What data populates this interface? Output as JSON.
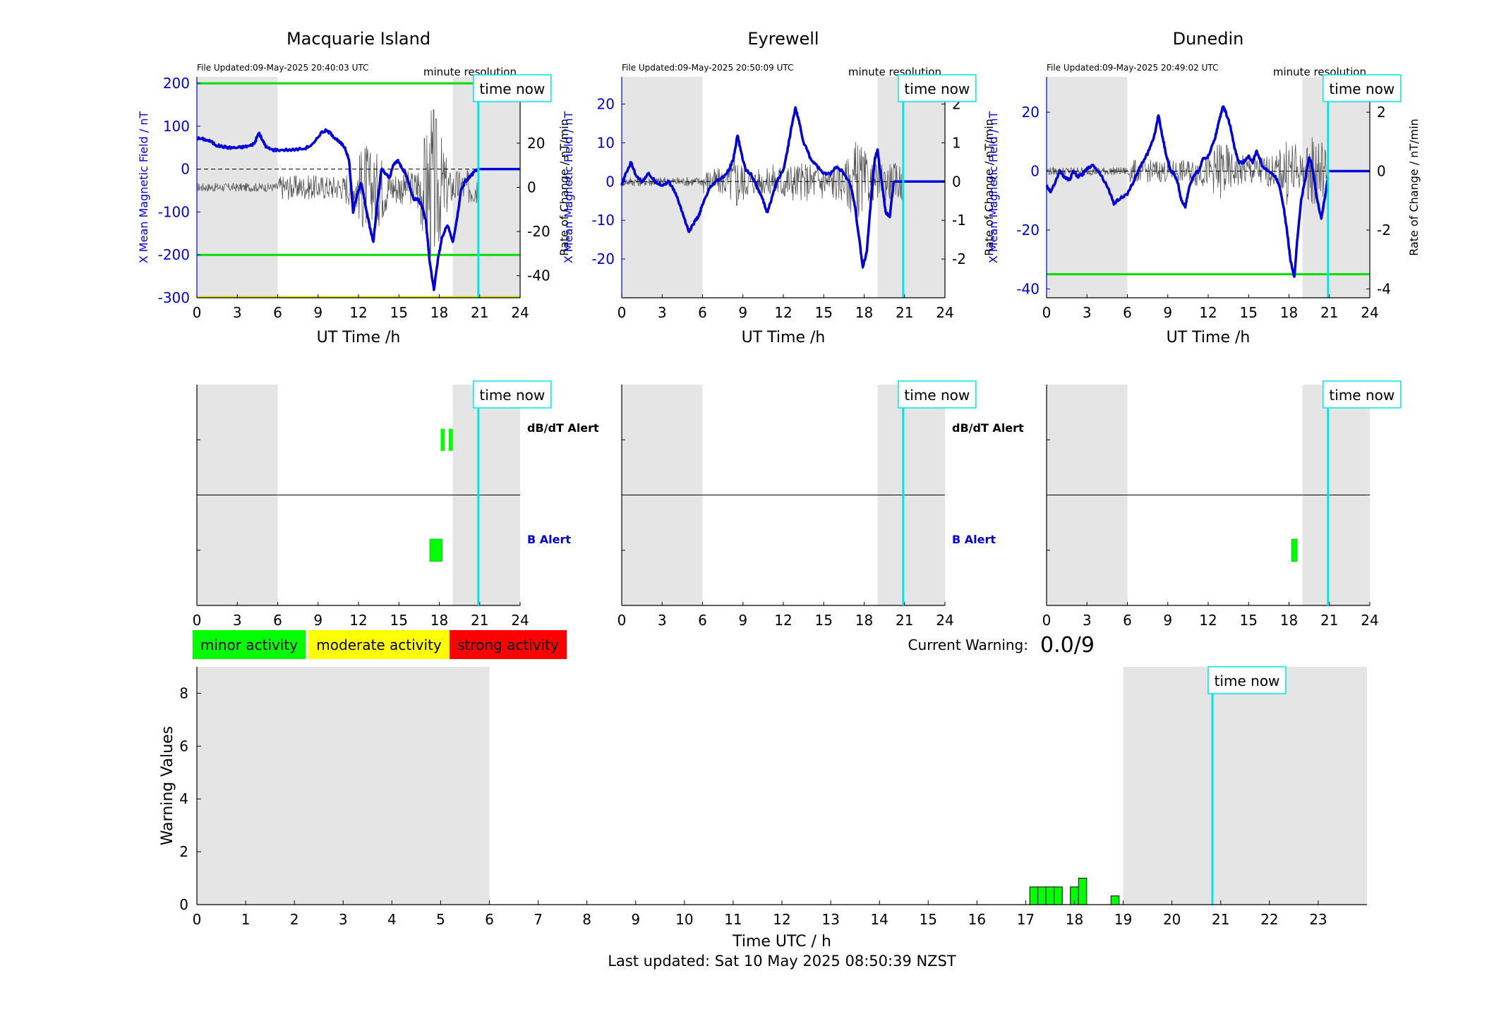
{
  "stations": [
    {
      "title": "Macquarie Island",
      "file_updated": "File Updated:09-May-2025 20:40:03 UTC",
      "resolution": "minute resolution",
      "time_now_label": "time now",
      "left_axis_label": "X Mean Magnetic Field / nT",
      "right_axis_label": "Rate of Change / nT/min",
      "xlabel": "UT Time /h",
      "left_ylim": [
        -300,
        215
      ],
      "left_ticks": [
        -300,
        -200,
        -100,
        0,
        100,
        200
      ],
      "right_ylim": [
        -50,
        50
      ],
      "right_ticks": [
        -40,
        -20,
        0,
        20
      ],
      "thresholds": [
        200,
        -200
      ],
      "floor_line_value": -300,
      "time_now_hour": 20.9,
      "shade_ranges": [
        [
          0,
          6
        ],
        [
          19,
          24
        ]
      ],
      "field_series": [
        [
          0,
          72
        ],
        [
          0.5,
          70
        ],
        [
          1,
          65
        ],
        [
          1.5,
          55
        ],
        [
          2,
          52
        ],
        [
          2.5,
          50
        ],
        [
          3,
          50
        ],
        [
          3.5,
          52
        ],
        [
          4,
          55
        ],
        [
          4.3,
          62
        ],
        [
          4.6,
          85
        ],
        [
          4.9,
          65
        ],
        [
          5.2,
          50
        ],
        [
          5.6,
          45
        ],
        [
          6,
          45
        ],
        [
          7,
          45
        ],
        [
          8,
          48
        ],
        [
          8.7,
          60
        ],
        [
          9.2,
          85
        ],
        [
          9.6,
          90
        ],
        [
          10,
          82
        ],
        [
          10.3,
          70
        ],
        [
          10.7,
          60
        ],
        [
          11,
          50
        ],
        [
          11.3,
          20
        ],
        [
          11.6,
          -100
        ],
        [
          11.9,
          -60
        ],
        [
          12.2,
          -30
        ],
        [
          12.5,
          -80
        ],
        [
          12.8,
          -130
        ],
        [
          13.1,
          -170
        ],
        [
          13.4,
          -80
        ],
        [
          13.7,
          0
        ],
        [
          14,
          -10
        ],
        [
          14.3,
          -20
        ],
        [
          14.6,
          10
        ],
        [
          14.9,
          20
        ],
        [
          15.2,
          5
        ],
        [
          15.5,
          -10
        ],
        [
          15.8,
          -40
        ],
        [
          16.1,
          -70
        ],
        [
          16.4,
          -70
        ],
        [
          16.7,
          -85
        ],
        [
          17,
          -120
        ],
        [
          17.3,
          -220
        ],
        [
          17.6,
          -280
        ],
        [
          17.9,
          -210
        ],
        [
          18.2,
          -160
        ],
        [
          18.6,
          -130
        ],
        [
          19,
          -170
        ],
        [
          19.3,
          -120
        ],
        [
          19.6,
          -50
        ],
        [
          19.9,
          -30
        ],
        [
          20.2,
          -20
        ],
        [
          20.5,
          -10
        ],
        [
          20.8,
          0
        ]
      ],
      "forecast_level": 0,
      "roc_amplitude": 8,
      "roc_spike_centers": [
        [
          12.5,
          22
        ],
        [
          17.5,
          40
        ],
        [
          13.5,
          18
        ]
      ],
      "alert_db_dt": [
        [
          18.1,
          18.4
        ],
        [
          18.7,
          19.0
        ]
      ],
      "alert_b": [
        [
          17.3,
          18.2
        ]
      ]
    },
    {
      "title": "Eyrewell",
      "file_updated": "File Updated:09-May-2025 20:50:09 UTC",
      "resolution": "minute resolution",
      "time_now_label": "time now",
      "left_axis_label": "X Mean Magnetic Field / nT",
      "right_axis_label": "Rate of Change / nT/min",
      "xlabel": "UT Time /h",
      "left_ylim": [
        -30,
        27
      ],
      "left_ticks": [
        -20,
        -10,
        0,
        10,
        20
      ],
      "right_ylim": [
        -3,
        2.7
      ],
      "right_ticks": [
        -2,
        -1,
        0,
        1,
        2
      ],
      "thresholds": [],
      "floor_line_value": null,
      "time_now_hour": 20.9,
      "shade_ranges": [
        [
          0,
          6
        ],
        [
          19,
          24
        ]
      ],
      "field_series": [
        [
          0,
          -1
        ],
        [
          0.3,
          2
        ],
        [
          0.7,
          5
        ],
        [
          1,
          2
        ],
        [
          1.5,
          0
        ],
        [
          2,
          2
        ],
        [
          2.5,
          0
        ],
        [
          3,
          -1
        ],
        [
          3.5,
          0
        ],
        [
          4,
          -3
        ],
        [
          4.5,
          -8
        ],
        [
          5,
          -13
        ],
        [
          5.3,
          -11
        ],
        [
          5.7,
          -9
        ],
        [
          6,
          -6
        ],
        [
          6.5,
          -2
        ],
        [
          7,
          0
        ],
        [
          7.5,
          1
        ],
        [
          8,
          3
        ],
        [
          8.3,
          6
        ],
        [
          8.6,
          12
        ],
        [
          8.9,
          7
        ],
        [
          9.2,
          3
        ],
        [
          9.6,
          2
        ],
        [
          10,
          -1
        ],
        [
          10.5,
          -5
        ],
        [
          10.8,
          -8
        ],
        [
          11.1,
          -5
        ],
        [
          11.5,
          0
        ],
        [
          12,
          3
        ],
        [
          12.3,
          8
        ],
        [
          12.6,
          14
        ],
        [
          12.9,
          19
        ],
        [
          13.2,
          15
        ],
        [
          13.5,
          10
        ],
        [
          13.8,
          8
        ],
        [
          14,
          6
        ],
        [
          14.5,
          4
        ],
        [
          15,
          2
        ],
        [
          15.5,
          2
        ],
        [
          16,
          4
        ],
        [
          16.5,
          2
        ],
        [
          17,
          -1
        ],
        [
          17.3,
          -6
        ],
        [
          17.6,
          -14
        ],
        [
          17.9,
          -22
        ],
        [
          18.2,
          -18
        ],
        [
          18.5,
          -5
        ],
        [
          18.8,
          6
        ],
        [
          19,
          8
        ],
        [
          19.3,
          0
        ],
        [
          19.6,
          -8
        ],
        [
          19.9,
          -9
        ],
        [
          20.2,
          0
        ]
      ],
      "forecast_level": 0,
      "roc_amplitude": 0.5,
      "roc_spike_centers": [
        [
          17.5,
          1.2
        ],
        [
          8.5,
          0.8
        ]
      ],
      "alert_db_dt": [],
      "alert_b": []
    },
    {
      "title": "Dunedin",
      "file_updated": "File Updated:09-May-2025 20:49:02 UTC",
      "resolution": "minute resolution",
      "time_now_label": "time now",
      "left_axis_label": "X Mean Magnetic Field / nT",
      "right_axis_label": "Rate of Change / nT/min",
      "xlabel": "UT Time /h",
      "left_ylim": [
        -43,
        32
      ],
      "left_ticks": [
        -40,
        -20,
        0,
        20
      ],
      "right_ylim": [
        -4.3,
        3.2
      ],
      "right_ticks": [
        -4,
        -2,
        0,
        2
      ],
      "thresholds": [
        -35
      ],
      "floor_line_value": null,
      "time_now_hour": 20.9,
      "shade_ranges": [
        [
          0,
          6
        ],
        [
          19,
          24
        ]
      ],
      "field_series": [
        [
          0,
          -5
        ],
        [
          0.3,
          -7
        ],
        [
          0.7,
          -3
        ],
        [
          1,
          0
        ],
        [
          1.3,
          -2
        ],
        [
          1.7,
          -3
        ],
        [
          2,
          0
        ],
        [
          2.3,
          -2
        ],
        [
          2.7,
          -1
        ],
        [
          3,
          1
        ],
        [
          3.5,
          2
        ],
        [
          4,
          -1
        ],
        [
          4.5,
          -5
        ],
        [
          5,
          -11
        ],
        [
          5.5,
          -9
        ],
        [
          6,
          -8
        ],
        [
          6.5,
          -3
        ],
        [
          7,
          2
        ],
        [
          7.5,
          6
        ],
        [
          8,
          12
        ],
        [
          8.3,
          19
        ],
        [
          8.6,
          12
        ],
        [
          8.9,
          5
        ],
        [
          9.2,
          0
        ],
        [
          9.5,
          -1
        ],
        [
          9.8,
          -5
        ],
        [
          10,
          -10
        ],
        [
          10.3,
          -12
        ],
        [
          10.6,
          -5
        ],
        [
          11,
          -1
        ],
        [
          11.3,
          0
        ],
        [
          11.6,
          4
        ],
        [
          12,
          5
        ],
        [
          12.5,
          11
        ],
        [
          12.8,
          17
        ],
        [
          13.1,
          22
        ],
        [
          13.3,
          20
        ],
        [
          13.6,
          16
        ],
        [
          14,
          7
        ],
        [
          14.3,
          3
        ],
        [
          14.6,
          3
        ],
        [
          15,
          5
        ],
        [
          15.3,
          3
        ],
        [
          15.6,
          7
        ],
        [
          16,
          2
        ],
        [
          16.5,
          0
        ],
        [
          17,
          -2
        ],
        [
          17.3,
          -5
        ],
        [
          17.6,
          -12
        ],
        [
          17.9,
          -22
        ],
        [
          18.1,
          -30
        ],
        [
          18.4,
          -36
        ],
        [
          18.6,
          -24
        ],
        [
          18.9,
          -10
        ],
        [
          19.2,
          -3
        ],
        [
          19.5,
          5
        ],
        [
          19.8,
          0
        ],
        [
          20.1,
          -10
        ],
        [
          20.4,
          -16
        ],
        [
          20.7,
          -8
        ],
        [
          20.9,
          -2
        ]
      ],
      "forecast_level": 0,
      "roc_amplitude": 0.55,
      "roc_spike_centers": [
        [
          13,
          1.2
        ],
        [
          18,
          1.3
        ],
        [
          20,
          1.5
        ]
      ],
      "alert_db_dt": [],
      "alert_b": [
        [
          18.2,
          18.6
        ]
      ]
    }
  ],
  "alert_labels": {
    "db_dt": "dB/dT Alert",
    "b": "B Alert"
  },
  "alert_ticks": [
    0,
    3,
    6,
    9,
    12,
    15,
    18,
    21,
    24
  ],
  "legend": [
    {
      "label": "minor activity",
      "color": "#00ff00"
    },
    {
      "label": "moderate activity",
      "color": "#ffff00"
    },
    {
      "label": "strong activity",
      "color": "#ff0000"
    }
  ],
  "current_warning": {
    "label": "Current Warning:",
    "value": "0.0/9"
  },
  "warning_chart": {
    "type": "bar",
    "xlabel": "Time UTC / h",
    "ylabel": "Warning Values",
    "xlim": [
      0,
      24
    ],
    "ylim": [
      0,
      9
    ],
    "yticks": [
      0,
      2,
      4,
      6,
      8
    ],
    "xticks": [
      0,
      1,
      2,
      3,
      4,
      5,
      6,
      7,
      8,
      9,
      10,
      11,
      12,
      13,
      14,
      15,
      16,
      17,
      18,
      19,
      20,
      21,
      22,
      23
    ],
    "shade_ranges": [
      [
        0,
        6
      ],
      [
        19,
        24
      ]
    ],
    "time_now_hour": 20.83,
    "time_now_label": "time now",
    "bar_width_hours": 0.167,
    "bars": [
      {
        "x": 17.167,
        "value": 0.67
      },
      {
        "x": 17.333,
        "value": 0.67
      },
      {
        "x": 17.5,
        "value": 0.67
      },
      {
        "x": 17.667,
        "value": 0.67
      },
      {
        "x": 18.0,
        "value": 0.67
      },
      {
        "x": 18.167,
        "value": 1.0
      },
      {
        "x": 18.833,
        "value": 0.33
      }
    ],
    "bar_color": "#00ff00"
  },
  "footer": "Last updated: Sat 10 May 2025 08:50:39 NZST",
  "colors": {
    "field_line": "#0000dd",
    "roc_line": "#555555",
    "threshold_green": "#00dd00",
    "floor_yellow": "#dddd00",
    "time_now": "#00e5e5",
    "shade": "#e5e5e5"
  }
}
